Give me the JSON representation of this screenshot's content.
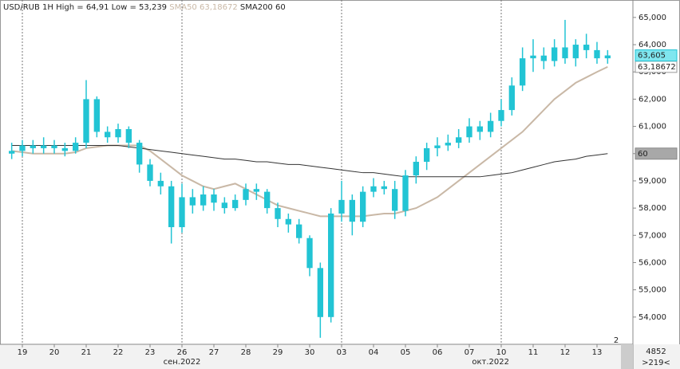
{
  "chart_data": {
    "type": "candlestick",
    "title": "USD/RUB 1H High = 64,91 Low = 53,239",
    "open": [
      60.0,
      60.1,
      60.3,
      60.2,
      60.3,
      60.2,
      60.1,
      60.4,
      62.0,
      60.8,
      60.6,
      60.9,
      60.4,
      59.6,
      59.0,
      58.8,
      57.3,
      58.4,
      58.1,
      58.5,
      58.2,
      58.0,
      58.3,
      58.7,
      58.6,
      58.0,
      57.6,
      57.4,
      56.9,
      55.8,
      54.0,
      57.8,
      58.3,
      57.5,
      58.6,
      58.8,
      58.7,
      57.9,
      59.2,
      59.7,
      60.2,
      60.3,
      60.4,
      60.6,
      61.0,
      60.8,
      61.2,
      61.6,
      62.5,
      63.5,
      63.6,
      63.4,
      63.9,
      63.5,
      64.0,
      63.8,
      63.5
    ],
    "high": [
      60.4,
      60.5,
      60.5,
      60.6,
      60.5,
      60.4,
      60.6,
      62.7,
      62.1,
      61.0,
      61.1,
      61.0,
      60.5,
      59.8,
      59.3,
      59.0,
      58.9,
      58.7,
      58.8,
      58.7,
      58.4,
      58.5,
      58.9,
      58.9,
      58.7,
      58.2,
      57.8,
      57.6,
      57.0,
      56.0,
      58.0,
      59.0,
      58.5,
      58.8,
      59.1,
      59.0,
      59.0,
      59.4,
      59.9,
      60.4,
      60.6,
      60.7,
      60.9,
      61.3,
      61.2,
      61.5,
      62.0,
      62.8,
      63.9,
      64.2,
      63.9,
      64.2,
      64.91,
      64.2,
      64.4,
      64.1,
      63.8
    ],
    "low": [
      59.8,
      59.9,
      60.0,
      60.0,
      60.0,
      59.9,
      60.0,
      60.2,
      60.6,
      60.4,
      60.4,
      60.2,
      59.3,
      58.8,
      58.5,
      56.7,
      57.1,
      57.8,
      57.9,
      57.9,
      57.8,
      57.9,
      58.1,
      58.3,
      57.8,
      57.3,
      57.1,
      56.7,
      55.5,
      53.239,
      53.8,
      57.5,
      57.0,
      57.3,
      58.4,
      58.5,
      57.6,
      57.7,
      58.9,
      59.4,
      59.9,
      60.1,
      60.2,
      60.4,
      60.5,
      60.6,
      61.0,
      61.4,
      62.3,
      63.0,
      63.1,
      63.2,
      63.3,
      63.2,
      63.5,
      63.3,
      63.3
    ],
    "close": [
      60.1,
      60.3,
      60.2,
      60.3,
      60.2,
      60.1,
      60.4,
      62.0,
      60.8,
      60.6,
      60.9,
      60.4,
      59.6,
      59.0,
      58.8,
      57.3,
      58.4,
      58.1,
      58.5,
      58.2,
      58.0,
      58.3,
      58.7,
      58.6,
      58.0,
      57.6,
      57.4,
      56.9,
      55.8,
      54.0,
      57.8,
      58.3,
      57.5,
      58.6,
      58.8,
      58.7,
      57.9,
      59.2,
      59.7,
      60.2,
      60.3,
      60.4,
      60.6,
      61.0,
      60.8,
      61.2,
      61.6,
      62.5,
      63.5,
      63.6,
      63.4,
      63.9,
      63.5,
      64.0,
      63.8,
      63.5,
      63.605
    ],
    "color": "#22c4d4",
    "price_label": "63,605",
    "series": [
      {
        "name": "SMA50",
        "last_label": "63,18672",
        "color": "#c9b8a6",
        "values": [
          60.1,
          60.05,
          60.0,
          60.0,
          60.0,
          60.0,
          60.05,
          60.2,
          60.25,
          60.3,
          60.3,
          60.3,
          60.3,
          60.1,
          59.8,
          59.5,
          59.2,
          59.0,
          58.8,
          58.7,
          58.8,
          58.9,
          58.7,
          58.5,
          58.3,
          58.1,
          58.0,
          57.9,
          57.8,
          57.7,
          57.7,
          57.7,
          57.7,
          57.7,
          57.75,
          57.8,
          57.8,
          57.9,
          58.0,
          58.2,
          58.4,
          58.7,
          59.0,
          59.3,
          59.6,
          59.9,
          60.2,
          60.5,
          60.8,
          61.2,
          61.6,
          62.0,
          62.3,
          62.6,
          62.8,
          63.0,
          63.18672
        ]
      },
      {
        "name": "SMA200",
        "last_label": "60",
        "color": "#333333",
        "values": [
          60.3,
          60.3,
          60.3,
          60.3,
          60.3,
          60.3,
          60.3,
          60.3,
          60.3,
          60.3,
          60.3,
          60.25,
          60.2,
          60.15,
          60.1,
          60.05,
          60.0,
          59.95,
          59.9,
          59.85,
          59.8,
          59.8,
          59.75,
          59.7,
          59.7,
          59.65,
          59.6,
          59.6,
          59.55,
          59.5,
          59.45,
          59.4,
          59.35,
          59.3,
          59.3,
          59.25,
          59.2,
          59.15,
          59.15,
          59.15,
          59.15,
          59.15,
          59.15,
          59.15,
          59.15,
          59.2,
          59.25,
          59.3,
          59.4,
          59.5,
          59.6,
          59.7,
          59.75,
          59.8,
          59.9,
          59.95,
          60.0
        ]
      }
    ],
    "xlim": [
      -0.5,
      56.5
    ],
    "xticks": [
      {
        "value": 1,
        "label": "19"
      },
      {
        "value": 4,
        "label": "20"
      },
      {
        "value": 7,
        "label": "21"
      },
      {
        "value": 10,
        "label": "22"
      },
      {
        "value": 13,
        "label": "23"
      },
      {
        "value": 16,
        "label": "26"
      },
      {
        "value": 19,
        "label": "27"
      },
      {
        "value": 22,
        "label": "28"
      },
      {
        "value": 25,
        "label": "29"
      },
      {
        "value": 28,
        "label": "30"
      },
      {
        "value": 31,
        "label": "03"
      },
      {
        "value": 34,
        "label": "04"
      },
      {
        "value": 37,
        "label": "05"
      },
      {
        "value": 40,
        "label": "06"
      },
      {
        "value": 43,
        "label": "07"
      },
      {
        "value": 46,
        "label": "10"
      },
      {
        "value": 49,
        "label": "11"
      },
      {
        "value": 52,
        "label": "12"
      },
      {
        "value": 55,
        "label": "13"
      }
    ],
    "month_labels": [
      {
        "value": 16,
        "label": "сен.2022"
      },
      {
        "value": 45,
        "label": "окт.2022"
      }
    ],
    "vlines": [
      1,
      16,
      31,
      46
    ],
    "ylim": [
      53.0,
      65.64
    ],
    "yticks": [
      {
        "value": 54,
        "label": "54,000"
      },
      {
        "value": 55,
        "label": "55,000"
      },
      {
        "value": 56,
        "label": "56,000"
      },
      {
        "value": 57,
        "label": "57,000"
      },
      {
        "value": 58,
        "label": "58,000"
      },
      {
        "value": 59,
        "label": "59,000"
      },
      {
        "value": 60,
        "label": "60,000"
      },
      {
        "value": 61,
        "label": "61,000"
      },
      {
        "value": 62,
        "label": "62,000"
      },
      {
        "value": 63,
        "label": "63,000"
      },
      {
        "value": 64,
        "label": "64,000"
      },
      {
        "value": 65,
        "label": "65,000"
      }
    ],
    "footer": {
      "page": "2",
      "count": "4852",
      "offset": ">219<"
    }
  }
}
